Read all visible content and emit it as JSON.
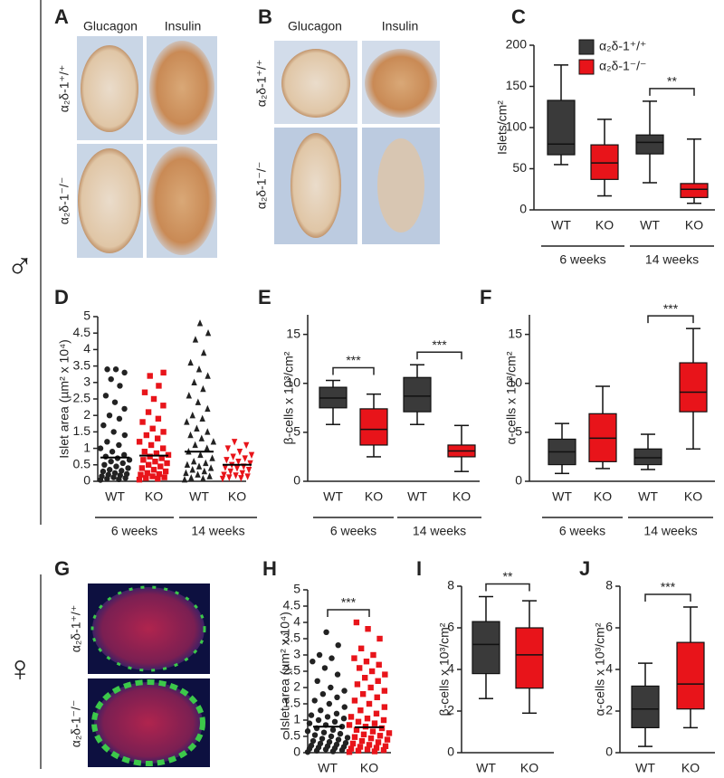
{
  "sex_symbols": [
    "♂",
    "♀"
  ],
  "image_panels": [
    {
      "panel": "A",
      "columns": [
        "Glucagon",
        "Insulin"
      ],
      "rows": [
        "α₂δ-1⁺/⁺",
        "α₂δ-1⁻/⁻"
      ]
    },
    {
      "panel": "B",
      "columns": [
        "Glucagon",
        "Insulin"
      ],
      "rows": [
        "α₂δ-1⁺/⁺",
        "α₂δ-1⁻/⁻"
      ]
    },
    {
      "panel": "G",
      "rows": [
        "α₂δ-1⁺/⁺",
        "α₂δ-1⁻/⁻"
      ]
    }
  ],
  "chart_data": [
    {
      "type": "box",
      "panel": "C",
      "y_label": "Islets/cm²",
      "ylim": [
        0,
        200
      ],
      "yticks": [
        0,
        50,
        100,
        150,
        200
      ],
      "categories": [
        "WT",
        "KO",
        "WT",
        "KO"
      ],
      "groups": [
        "6 weeks",
        "14 weeks"
      ],
      "box_colors": [
        "#3a3a3a",
        "#e8141a",
        "#3a3a3a",
        "#e8141a"
      ],
      "boxes": [
        {
          "min": 55,
          "q1": 67,
          "median": 80,
          "q3": 133,
          "max": 176
        },
        {
          "min": 17,
          "q1": 37,
          "median": 57,
          "q3": 79,
          "max": 110
        },
        {
          "min": 33,
          "q1": 68,
          "median": 82,
          "q3": 91,
          "max": 132
        },
        {
          "min": 8,
          "q1": 15,
          "median": 25,
          "q3": 32,
          "max": 86
        }
      ],
      "significance": [
        {
          "label": "**",
          "pair": [
            2,
            3
          ]
        }
      ],
      "legend": [
        {
          "name": "α₂δ-1⁺/⁺",
          "color": "#3a3a3a"
        },
        {
          "name": "α₂δ-1⁻/⁻",
          "color": "#e8141a"
        }
      ]
    },
    {
      "type": "strip",
      "panel": "D",
      "y_label": "Islet area (µm² x 10⁴)",
      "ylim": [
        0,
        5
      ],
      "yticks": [
        0,
        0.5,
        1,
        1.5,
        2,
        2.5,
        3,
        3.5,
        4,
        4.5,
        5
      ],
      "categories": [
        "WT",
        "KO",
        "WT",
        "KO"
      ],
      "groups": [
        "6 weeks",
        "14 weeks"
      ],
      "series": [
        {
          "color": "#222222",
          "marker": "circle",
          "mean": 0.72,
          "values": [
            0.04,
            0.06,
            0.08,
            0.1,
            0.12,
            0.15,
            0.18,
            0.2,
            0.22,
            0.25,
            0.3,
            0.32,
            0.35,
            0.4,
            0.45,
            0.5,
            0.55,
            0.6,
            0.65,
            0.7,
            0.75,
            0.8,
            0.9,
            1.0,
            1.1,
            1.2,
            1.4,
            1.5,
            1.7,
            1.9,
            2.0,
            2.2,
            2.4,
            2.6,
            2.9,
            3.1,
            3.3,
            3.4,
            3.4
          ]
        },
        {
          "color": "#e8141a",
          "marker": "square",
          "mean": 0.78,
          "values": [
            0.05,
            0.08,
            0.1,
            0.12,
            0.15,
            0.2,
            0.22,
            0.25,
            0.3,
            0.35,
            0.4,
            0.45,
            0.5,
            0.55,
            0.6,
            0.65,
            0.7,
            0.75,
            0.8,
            0.85,
            0.9,
            1.0,
            1.1,
            1.2,
            1.3,
            1.4,
            1.5,
            1.6,
            1.8,
            1.9,
            2.1,
            2.3,
            2.5,
            2.7,
            2.9,
            3.2,
            3.3
          ]
        },
        {
          "color": "#222222",
          "marker": "triangle",
          "mean": 0.9,
          "values": [
            0.05,
            0.08,
            0.1,
            0.15,
            0.2,
            0.25,
            0.3,
            0.35,
            0.4,
            0.45,
            0.5,
            0.55,
            0.6,
            0.7,
            0.8,
            0.9,
            1.0,
            1.1,
            1.2,
            1.3,
            1.4,
            1.5,
            1.6,
            1.8,
            1.9,
            2.0,
            2.2,
            2.4,
            2.6,
            2.8,
            3.0,
            3.2,
            3.4,
            3.6,
            3.9,
            4.3,
            4.5,
            4.8
          ]
        },
        {
          "color": "#e8141a",
          "marker": "triangle-down",
          "mean": 0.5,
          "values": [
            0.08,
            0.1,
            0.12,
            0.15,
            0.18,
            0.2,
            0.25,
            0.3,
            0.35,
            0.4,
            0.42,
            0.45,
            0.5,
            0.55,
            0.6,
            0.65,
            0.7,
            0.75,
            0.8,
            0.9,
            1.0,
            1.1,
            1.2
          ]
        }
      ]
    },
    {
      "type": "box",
      "panel": "E",
      "y_label": "β-cells x 10³/cm²",
      "ylim": [
        0,
        17
      ],
      "yticks": [
        0,
        5,
        10,
        15
      ],
      "categories": [
        "WT",
        "KO",
        "WT",
        "KO"
      ],
      "groups": [
        "6 weeks",
        "14 weeks"
      ],
      "box_colors": [
        "#3a3a3a",
        "#e8141a",
        "#3a3a3a",
        "#e8141a"
      ],
      "boxes": [
        {
          "min": 5.8,
          "q1": 7.5,
          "median": 8.5,
          "q3": 9.6,
          "max": 10.3
        },
        {
          "min": 2.5,
          "q1": 3.7,
          "median": 5.3,
          "q3": 7.4,
          "max": 8.9
        },
        {
          "min": 5.8,
          "q1": 7.1,
          "median": 8.7,
          "q3": 10.6,
          "max": 11.9
        },
        {
          "min": 1.0,
          "q1": 2.5,
          "median": 3.1,
          "q3": 3.7,
          "max": 5.7
        }
      ],
      "significance": [
        {
          "label": "***",
          "pair": [
            0,
            1
          ]
        },
        {
          "label": "***",
          "pair": [
            2,
            3
          ]
        }
      ]
    },
    {
      "type": "box",
      "panel": "F",
      "y_label": "α-cells x 10³/cm²",
      "ylim": [
        0,
        17
      ],
      "yticks": [
        0,
        5,
        10,
        15
      ],
      "categories": [
        "WT",
        "KO",
        "WT",
        "KO"
      ],
      "groups": [
        "6 weeks",
        "14 weeks"
      ],
      "box_colors": [
        "#3a3a3a",
        "#e8141a",
        "#3a3a3a",
        "#e8141a"
      ],
      "boxes": [
        {
          "min": 0.8,
          "q1": 1.7,
          "median": 3.0,
          "q3": 4.3,
          "max": 5.9
        },
        {
          "min": 1.3,
          "q1": 2.0,
          "median": 4.4,
          "q3": 6.9,
          "max": 9.7
        },
        {
          "min": 1.2,
          "q1": 1.7,
          "median": 2.4,
          "q3": 3.3,
          "max": 4.8
        },
        {
          "min": 3.3,
          "q1": 7.1,
          "median": 9.1,
          "q3": 12.1,
          "max": 15.6
        }
      ],
      "significance": [
        {
          "label": "***",
          "pair": [
            2,
            3
          ]
        }
      ]
    },
    {
      "type": "strip",
      "panel": "H",
      "y_label": "Islet area (µm² x 10⁴)",
      "ylim": [
        0,
        5
      ],
      "yticks": [
        0,
        0.5,
        1,
        1.5,
        2,
        2.5,
        3,
        3.5,
        4,
        4.5,
        5
      ],
      "categories": [
        "WT",
        "KO"
      ],
      "series": [
        {
          "color": "#222222",
          "marker": "circle",
          "mean": 0.8,
          "values": [
            0.02,
            0.04,
            0.06,
            0.08,
            0.1,
            0.12,
            0.14,
            0.16,
            0.18,
            0.2,
            0.22,
            0.25,
            0.28,
            0.3,
            0.33,
            0.36,
            0.4,
            0.43,
            0.46,
            0.5,
            0.54,
            0.58,
            0.62,
            0.66,
            0.7,
            0.75,
            0.8,
            0.85,
            0.9,
            0.95,
            1.0,
            1.05,
            1.1,
            1.15,
            1.2,
            1.3,
            1.4,
            1.5,
            1.6,
            1.7,
            1.8,
            1.9,
            2.0,
            2.2,
            2.4,
            2.6,
            2.8,
            2.9,
            3.0,
            3.3,
            3.7
          ]
        },
        {
          "color": "#e8141a",
          "marker": "square",
          "mean": 0.78,
          "values": [
            0.02,
            0.04,
            0.06,
            0.08,
            0.1,
            0.12,
            0.15,
            0.18,
            0.2,
            0.24,
            0.28,
            0.32,
            0.36,
            0.4,
            0.44,
            0.48,
            0.52,
            0.56,
            0.6,
            0.65,
            0.7,
            0.75,
            0.8,
            0.85,
            0.9,
            0.95,
            1.0,
            1.05,
            1.1,
            1.2,
            1.3,
            1.4,
            1.5,
            1.6,
            1.7,
            1.8,
            1.9,
            2.0,
            2.1,
            2.2,
            2.3,
            2.4,
            2.5,
            2.6,
            2.7,
            2.8,
            2.9,
            3.0,
            3.2,
            3.5,
            3.8,
            4.0
          ]
        }
      ],
      "significance": [
        {
          "label": "***",
          "pair": [
            0,
            1
          ]
        }
      ]
    },
    {
      "type": "box",
      "panel": "I",
      "y_label": "β-cells x 10³/cm²",
      "ylim": [
        0,
        8
      ],
      "yticks": [
        0,
        2,
        4,
        6,
        8
      ],
      "categories": [
        "WT",
        "KO"
      ],
      "box_colors": [
        "#3a3a3a",
        "#e8141a"
      ],
      "boxes": [
        {
          "min": 2.6,
          "q1": 3.8,
          "median": 5.2,
          "q3": 6.3,
          "max": 7.5
        },
        {
          "min": 1.9,
          "q1": 3.1,
          "median": 4.7,
          "q3": 6.0,
          "max": 7.3
        }
      ],
      "significance": [
        {
          "label": "**",
          "pair": [
            0,
            1
          ]
        }
      ]
    },
    {
      "type": "box",
      "panel": "J",
      "y_label": "α-cells x 10³/cm²",
      "ylim": [
        0,
        8
      ],
      "yticks": [
        0,
        2,
        4,
        6,
        8
      ],
      "categories": [
        "WT",
        "KO"
      ],
      "box_colors": [
        "#3a3a3a",
        "#e8141a"
      ],
      "boxes": [
        {
          "min": 0.3,
          "q1": 1.2,
          "median": 2.1,
          "q3": 3.2,
          "max": 4.3
        },
        {
          "min": 1.2,
          "q1": 2.1,
          "median": 3.3,
          "q3": 5.3,
          "max": 7.0
        }
      ],
      "significance": [
        {
          "label": "***",
          "pair": [
            0,
            1
          ]
        }
      ]
    }
  ]
}
